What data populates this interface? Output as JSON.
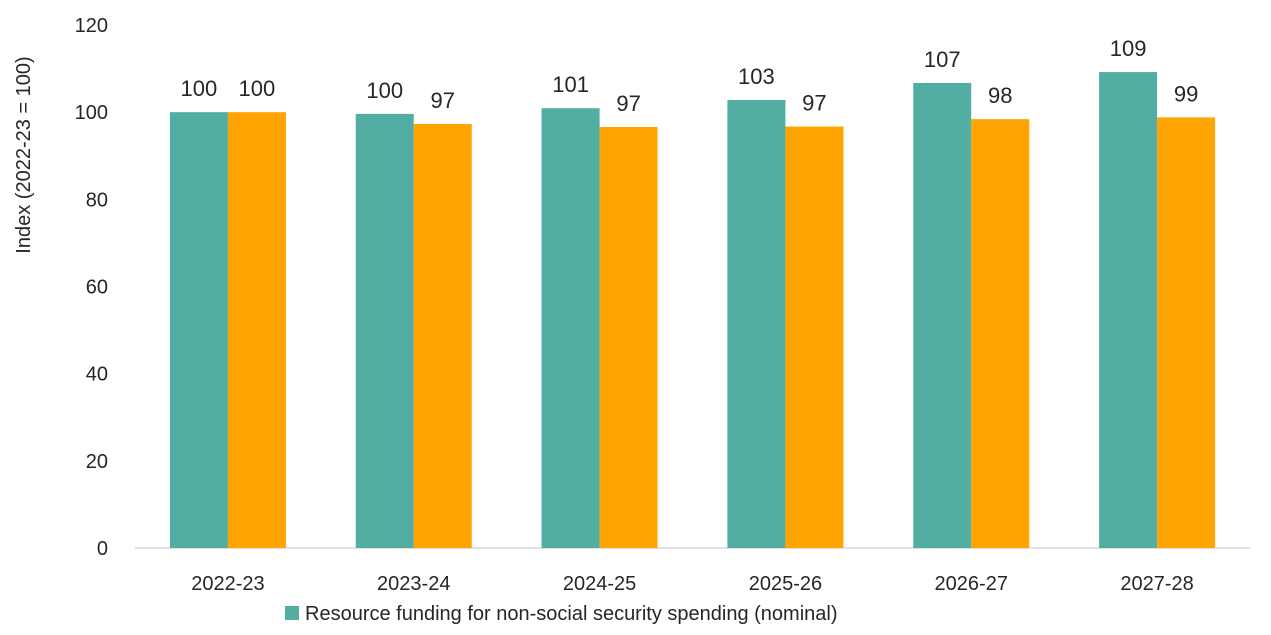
{
  "chart_data": {
    "type": "bar",
    "ylabel": "Index (2022-23 = 100)",
    "xlabel": "",
    "ylim": [
      0,
      120
    ],
    "yticks": [
      0,
      20,
      40,
      60,
      80,
      100,
      120
    ],
    "grid": false,
    "legend_position": "bottom",
    "categories": [
      "2022-23",
      "2023-24",
      "2024-25",
      "2025-26",
      "2026-27",
      "2027-28"
    ],
    "series": [
      {
        "name": "Resource funding for non-social security spending (nominal)",
        "color": "#52ADA2",
        "values": [
          100,
          99.6,
          100.9,
          102.8,
          106.7,
          109.2
        ],
        "labels": [
          "100",
          "100",
          "101",
          "103",
          "107",
          "109"
        ],
        "show_in_legend": true
      },
      {
        "color": "#FFA400",
        "values": [
          100,
          97.3,
          96.6,
          96.7,
          98.4,
          98.8
        ],
        "labels": [
          "100",
          "97",
          "97",
          "97",
          "98",
          "99"
        ],
        "show_in_legend": false
      }
    ]
  }
}
